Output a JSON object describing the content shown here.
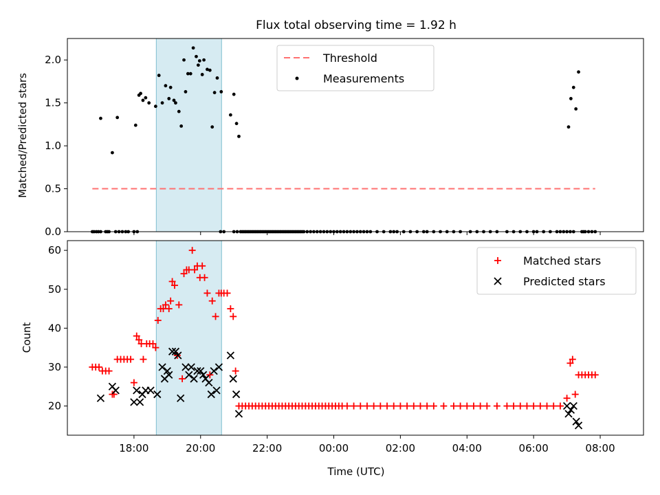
{
  "figure": {
    "title": "Flux total observing time = 1.92 h",
    "xlabel": "Time (UTC)",
    "x_tick_labels": [
      "18:00",
      "20:00",
      "22:00",
      "00:00",
      "02:00",
      "04:00",
      "06:00",
      "08:00"
    ],
    "x_tick_hours": [
      18,
      20,
      22,
      24,
      26,
      28,
      30,
      32
    ],
    "x_range_hours": [
      16.0,
      33.3
    ],
    "highlight_span_hours": [
      18.67,
      20.63
    ],
    "highlight_color": "#add8e6",
    "shared_x_axis": true
  },
  "chart_data": [
    {
      "type": "scatter",
      "ylabel": "Matched/Predicted stars",
      "ylim": [
        0,
        2.25
      ],
      "y_tick_labels": [
        "0.0",
        "0.5",
        "1.0",
        "1.5",
        "2.0"
      ],
      "y_ticks": [
        0,
        0.5,
        1.0,
        1.5,
        2.0
      ],
      "legend_position": "top-center",
      "threshold": {
        "name": "Threshold",
        "value": 0.5,
        "x_range": [
          16.75,
          31.85
        ],
        "color": "#ff7070",
        "style": "dashed"
      },
      "series": [
        {
          "name": "Measurements",
          "color": "#000000",
          "marker": "dot",
          "points": [
            [
              17.0,
              1.32
            ],
            [
              17.35,
              0.92
            ],
            [
              17.5,
              1.33
            ],
            [
              18.05,
              1.24
            ],
            [
              18.15,
              1.59
            ],
            [
              18.2,
              1.61
            ],
            [
              18.27,
              1.53
            ],
            [
              18.35,
              1.56
            ],
            [
              18.45,
              1.5
            ],
            [
              18.65,
              1.46
            ],
            [
              18.75,
              1.82
            ],
            [
              18.85,
              1.5
            ],
            [
              18.95,
              1.7
            ],
            [
              19.05,
              1.55
            ],
            [
              19.1,
              1.68
            ],
            [
              19.2,
              1.53
            ],
            [
              19.25,
              1.5
            ],
            [
              19.35,
              1.4
            ],
            [
              19.42,
              1.23
            ],
            [
              19.5,
              2.0
            ],
            [
              19.55,
              1.63
            ],
            [
              19.62,
              1.84
            ],
            [
              19.7,
              1.84
            ],
            [
              19.78,
              2.14
            ],
            [
              19.87,
              2.04
            ],
            [
              19.93,
              1.94
            ],
            [
              19.97,
              1.99
            ],
            [
              20.05,
              1.83
            ],
            [
              20.1,
              2.0
            ],
            [
              20.2,
              1.89
            ],
            [
              20.28,
              1.88
            ],
            [
              20.35,
              1.22
            ],
            [
              20.42,
              1.62
            ],
            [
              20.5,
              1.79
            ],
            [
              20.62,
              1.63
            ],
            [
              20.9,
              1.36
            ],
            [
              21.0,
              1.6
            ],
            [
              21.08,
              1.26
            ],
            [
              21.15,
              1.11
            ],
            [
              31.05,
              1.22
            ],
            [
              31.12,
              1.55
            ],
            [
              31.2,
              1.68
            ],
            [
              31.27,
              1.43
            ],
            [
              31.35,
              1.86
            ]
          ],
          "zero_points_x": [
            16.75,
            16.8,
            16.87,
            16.93,
            17.0,
            17.15,
            17.2,
            17.25,
            17.45,
            17.55,
            17.65,
            17.75,
            17.83,
            18.0,
            18.1,
            20.6,
            20.7,
            21.0,
            21.1,
            21.2,
            21.25,
            21.3,
            21.35,
            21.4,
            21.45,
            21.5,
            21.55,
            21.6,
            21.65,
            21.7,
            21.75,
            21.8,
            21.85,
            21.9,
            21.95,
            22.0,
            22.05,
            22.1,
            22.15,
            22.2,
            22.25,
            22.3,
            22.35,
            22.4,
            22.45,
            22.5,
            22.55,
            22.6,
            22.65,
            22.7,
            22.75,
            22.8,
            22.85,
            22.9,
            22.95,
            23.0,
            23.05,
            23.1,
            23.2,
            23.3,
            23.4,
            23.5,
            23.6,
            23.7,
            23.8,
            23.9,
            24.0,
            24.1,
            24.2,
            24.3,
            24.4,
            24.5,
            24.6,
            24.7,
            24.8,
            24.9,
            25.0,
            25.1,
            25.3,
            25.5,
            25.7,
            25.8,
            25.9,
            26.1,
            26.3,
            26.5,
            26.7,
            26.8,
            27.0,
            27.2,
            27.4,
            27.6,
            27.8,
            28.1,
            28.3,
            28.5,
            28.7,
            28.9,
            29.2,
            29.4,
            29.6,
            29.8,
            30.0,
            30.1,
            30.3,
            30.5,
            30.7,
            30.8,
            30.9,
            31.0,
            31.1,
            31.2,
            31.45,
            31.5,
            31.55,
            31.65,
            31.75,
            31.85
          ]
        }
      ]
    },
    {
      "type": "scatter",
      "ylabel": "Count",
      "ylim": [
        12.5,
        62.5
      ],
      "y_tick_labels": [
        "20",
        "30",
        "40",
        "50",
        "60"
      ],
      "y_ticks": [
        20,
        30,
        40,
        50,
        60
      ],
      "legend_position": "top-right",
      "series": [
        {
          "name": "Matched stars",
          "color": "#ff0000",
          "marker": "plus",
          "points": [
            [
              16.75,
              30
            ],
            [
              16.85,
              30
            ],
            [
              16.95,
              30
            ],
            [
              17.05,
              29
            ],
            [
              17.15,
              29
            ],
            [
              17.25,
              29
            ],
            [
              17.35,
              23
            ],
            [
              17.4,
              23
            ],
            [
              17.5,
              32
            ],
            [
              17.6,
              32
            ],
            [
              17.7,
              32
            ],
            [
              17.8,
              32
            ],
            [
              17.9,
              32
            ],
            [
              18.0,
              26
            ],
            [
              18.08,
              38
            ],
            [
              18.15,
              37
            ],
            [
              18.22,
              36
            ],
            [
              18.28,
              32
            ],
            [
              18.38,
              36
            ],
            [
              18.47,
              36
            ],
            [
              18.57,
              36
            ],
            [
              18.65,
              35
            ],
            [
              18.72,
              42
            ],
            [
              18.8,
              45
            ],
            [
              18.88,
              45
            ],
            [
              18.95,
              46
            ],
            [
              19.05,
              45
            ],
            [
              19.1,
              47
            ],
            [
              19.15,
              52
            ],
            [
              19.22,
              51
            ],
            [
              19.3,
              33
            ],
            [
              19.35,
              46
            ],
            [
              19.45,
              27
            ],
            [
              19.5,
              54
            ],
            [
              19.58,
              55
            ],
            [
              19.65,
              55
            ],
            [
              19.75,
              60
            ],
            [
              19.82,
              55
            ],
            [
              19.9,
              56
            ],
            [
              19.98,
              53
            ],
            [
              20.05,
              56
            ],
            [
              20.12,
              53
            ],
            [
              20.2,
              49
            ],
            [
              20.28,
              28
            ],
            [
              20.35,
              47
            ],
            [
              20.45,
              43
            ],
            [
              20.55,
              49
            ],
            [
              20.62,
              49
            ],
            [
              20.7,
              49
            ],
            [
              20.8,
              49
            ],
            [
              20.9,
              45
            ],
            [
              20.98,
              43
            ],
            [
              21.05,
              29
            ],
            [
              21.15,
              20
            ],
            [
              21.25,
              20
            ],
            [
              21.35,
              20
            ],
            [
              21.45,
              20
            ],
            [
              21.55,
              20
            ],
            [
              21.65,
              20
            ],
            [
              21.75,
              20
            ],
            [
              21.85,
              20
            ],
            [
              21.95,
              20
            ],
            [
              22.05,
              20
            ],
            [
              22.15,
              20
            ],
            [
              22.25,
              20
            ],
            [
              22.35,
              20
            ],
            [
              22.45,
              20
            ],
            [
              22.55,
              20
            ],
            [
              22.65,
              20
            ],
            [
              22.75,
              20
            ],
            [
              22.85,
              20
            ],
            [
              22.95,
              20
            ],
            [
              23.05,
              20
            ],
            [
              23.15,
              20
            ],
            [
              23.25,
              20
            ],
            [
              23.35,
              20
            ],
            [
              23.45,
              20
            ],
            [
              23.55,
              20
            ],
            [
              23.65,
              20
            ],
            [
              23.75,
              20
            ],
            [
              23.85,
              20
            ],
            [
              23.95,
              20
            ],
            [
              24.05,
              20
            ],
            [
              24.15,
              20
            ],
            [
              24.25,
              20
            ],
            [
              24.4,
              20
            ],
            [
              24.6,
              20
            ],
            [
              24.8,
              20
            ],
            [
              25.0,
              20
            ],
            [
              25.2,
              20
            ],
            [
              25.4,
              20
            ],
            [
              25.6,
              20
            ],
            [
              25.8,
              20
            ],
            [
              26.0,
              20
            ],
            [
              26.2,
              20
            ],
            [
              26.4,
              20
            ],
            [
              26.6,
              20
            ],
            [
              26.8,
              20
            ],
            [
              27.0,
              20
            ],
            [
              27.3,
              20
            ],
            [
              27.6,
              20
            ],
            [
              27.8,
              20
            ],
            [
              28.0,
              20
            ],
            [
              28.2,
              20
            ],
            [
              28.4,
              20
            ],
            [
              28.6,
              20
            ],
            [
              28.9,
              20
            ],
            [
              29.2,
              20
            ],
            [
              29.4,
              20
            ],
            [
              29.6,
              20
            ],
            [
              29.8,
              20
            ],
            [
              30.0,
              20
            ],
            [
              30.2,
              20
            ],
            [
              30.4,
              20
            ],
            [
              30.6,
              20
            ],
            [
              30.8,
              20
            ],
            [
              31.0,
              22
            ],
            [
              31.1,
              31
            ],
            [
              31.17,
              32
            ],
            [
              31.25,
              23
            ],
            [
              31.35,
              28
            ],
            [
              31.45,
              28
            ],
            [
              31.55,
              28
            ],
            [
              31.65,
              28
            ],
            [
              31.75,
              28
            ],
            [
              31.85,
              28
            ]
          ]
        },
        {
          "name": "Predicted stars",
          "color": "#000000",
          "marker": "x",
          "points": [
            [
              17.0,
              22
            ],
            [
              17.35,
              25
            ],
            [
              17.45,
              24
            ],
            [
              18.0,
              21
            ],
            [
              18.08,
              24
            ],
            [
              18.18,
              21
            ],
            [
              18.25,
              23
            ],
            [
              18.35,
              24
            ],
            [
              18.5,
              24
            ],
            [
              18.7,
              23
            ],
            [
              18.85,
              30
            ],
            [
              18.92,
              27
            ],
            [
              19.0,
              29
            ],
            [
              19.05,
              28
            ],
            [
              19.15,
              34
            ],
            [
              19.25,
              34
            ],
            [
              19.32,
              33
            ],
            [
              19.4,
              22
            ],
            [
              19.55,
              30
            ],
            [
              19.65,
              28
            ],
            [
              19.72,
              30
            ],
            [
              19.8,
              27
            ],
            [
              19.9,
              29
            ],
            [
              20.0,
              29
            ],
            [
              20.08,
              28
            ],
            [
              20.15,
              27
            ],
            [
              20.25,
              26
            ],
            [
              20.32,
              23
            ],
            [
              20.4,
              29
            ],
            [
              20.48,
              24
            ],
            [
              20.55,
              30
            ],
            [
              20.9,
              33
            ],
            [
              20.98,
              27
            ],
            [
              21.07,
              23
            ],
            [
              21.15,
              18
            ],
            [
              31.0,
              20
            ],
            [
              31.05,
              18
            ],
            [
              31.12,
              19
            ],
            [
              31.2,
              20
            ],
            [
              31.28,
              16
            ],
            [
              31.35,
              15
            ]
          ]
        }
      ]
    }
  ]
}
